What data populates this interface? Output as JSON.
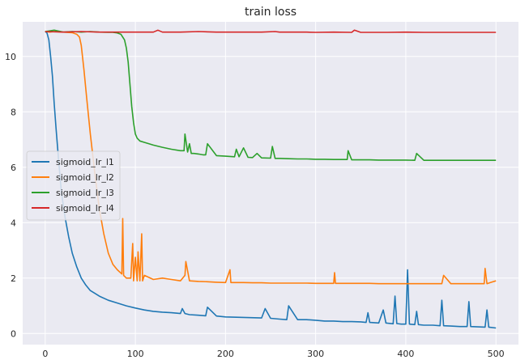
{
  "chart_data": {
    "type": "line",
    "title": "train loss",
    "xlabel": "",
    "ylabel": "",
    "xlim": [
      -25,
      525
    ],
    "ylim": [
      -0.4,
      11.25
    ],
    "xticks": [
      0,
      100,
      200,
      300,
      400,
      500
    ],
    "yticks": [
      0,
      2,
      4,
      6,
      8,
      10
    ],
    "grid": true,
    "legend_position": "center-left",
    "series": [
      {
        "name": "sigmoid_lr_l1",
        "color": "#1f77b4",
        "x": [
          0,
          2,
          4,
          6,
          8,
          10,
          12,
          15,
          18,
          22,
          26,
          30,
          35,
          40,
          45,
          50,
          55,
          60,
          70,
          80,
          90,
          100,
          110,
          120,
          130,
          140,
          150,
          152,
          155,
          160,
          170,
          178,
          180,
          190,
          200,
          220,
          240,
          244,
          250,
          260,
          268,
          270,
          280,
          290,
          300,
          310,
          320,
          330,
          340,
          350,
          356,
          358,
          360,
          370,
          375,
          378,
          380,
          386,
          388,
          390,
          395,
          400,
          402,
          404,
          410,
          412,
          414,
          420,
          430,
          438,
          440,
          442,
          450,
          460,
          468,
          470,
          472,
          480,
          488,
          490,
          492,
          500
        ],
        "y": [
          10.9,
          10.85,
          10.6,
          10.0,
          9.3,
          8.3,
          7.4,
          6.2,
          5.1,
          4.2,
          3.5,
          2.9,
          2.4,
          2.0,
          1.75,
          1.55,
          1.45,
          1.35,
          1.2,
          1.1,
          1.0,
          0.92,
          0.85,
          0.8,
          0.77,
          0.75,
          0.72,
          0.9,
          0.72,
          0.68,
          0.66,
          0.64,
          0.95,
          0.63,
          0.6,
          0.58,
          0.56,
          0.9,
          0.55,
          0.52,
          0.5,
          1.0,
          0.5,
          0.5,
          0.48,
          0.45,
          0.45,
          0.43,
          0.43,
          0.42,
          0.4,
          0.75,
          0.4,
          0.38,
          0.85,
          0.38,
          0.37,
          0.35,
          1.35,
          0.36,
          0.34,
          0.34,
          2.3,
          0.34,
          0.32,
          0.8,
          0.32,
          0.3,
          0.3,
          0.28,
          1.2,
          0.28,
          0.27,
          0.25,
          0.25,
          1.15,
          0.25,
          0.24,
          0.23,
          0.85,
          0.23,
          0.2
        ]
      },
      {
        "name": "sigmoid_lr_l2",
        "color": "#ff7f0e",
        "x": [
          0,
          5,
          10,
          20,
          30,
          35,
          38,
          40,
          43,
          46,
          50,
          55,
          60,
          65,
          70,
          75,
          80,
          85,
          86,
          87,
          90,
          95,
          97,
          98,
          100,
          102,
          103,
          105,
          107,
          108,
          110,
          120,
          130,
          140,
          150,
          155,
          156,
          160,
          170,
          180,
          190,
          200,
          205,
          206,
          210,
          220,
          230,
          240,
          250,
          260,
          270,
          280,
          290,
          300,
          310,
          320,
          321,
          322,
          330,
          340,
          350,
          360,
          370,
          380,
          390,
          400,
          410,
          420,
          440,
          442,
          450,
          460,
          470,
          480,
          487,
          488,
          490,
          495,
          500
        ],
        "y": [
          10.9,
          10.88,
          10.9,
          10.88,
          10.86,
          10.8,
          10.7,
          10.4,
          9.5,
          8.5,
          7.2,
          5.8,
          4.5,
          3.6,
          2.9,
          2.5,
          2.3,
          2.15,
          4.15,
          2.1,
          2.0,
          2.0,
          3.25,
          1.9,
          2.75,
          1.9,
          2.95,
          1.9,
          3.6,
          1.9,
          2.1,
          1.95,
          2.0,
          1.95,
          1.9,
          2.1,
          2.6,
          1.9,
          1.88,
          1.87,
          1.85,
          1.84,
          2.3,
          1.84,
          1.84,
          1.84,
          1.83,
          1.83,
          1.82,
          1.82,
          1.82,
          1.82,
          1.82,
          1.81,
          1.81,
          1.81,
          2.2,
          1.81,
          1.81,
          1.81,
          1.81,
          1.81,
          1.8,
          1.8,
          1.8,
          1.8,
          1.8,
          1.8,
          1.8,
          2.1,
          1.8,
          1.8,
          1.8,
          1.8,
          1.8,
          2.35,
          1.8,
          1.85,
          1.9
        ]
      },
      {
        "name": "sigmoid_lr_l3",
        "color": "#2ca02c",
        "x": [
          0,
          10,
          20,
          30,
          40,
          50,
          60,
          70,
          75,
          80,
          84,
          88,
          90,
          92,
          94,
          96,
          98,
          100,
          102,
          105,
          110,
          120,
          130,
          140,
          150,
          154,
          155,
          158,
          160,
          162,
          165,
          170,
          175,
          178,
          180,
          190,
          200,
          210,
          212,
          215,
          220,
          225,
          230,
          235,
          240,
          250,
          252,
          255,
          260,
          270,
          280,
          290,
          300,
          310,
          320,
          330,
          335,
          336,
          340,
          350,
          360,
          370,
          380,
          390,
          400,
          410,
          412,
          420,
          430,
          440,
          450,
          460,
          470,
          480,
          490,
          500
        ],
        "y": [
          10.9,
          10.95,
          10.88,
          10.9,
          10.88,
          10.9,
          10.88,
          10.87,
          10.87,
          10.85,
          10.8,
          10.6,
          10.3,
          9.8,
          9.0,
          8.2,
          7.6,
          7.2,
          7.05,
          6.95,
          6.9,
          6.8,
          6.72,
          6.65,
          6.6,
          6.6,
          7.2,
          6.55,
          6.85,
          6.5,
          6.5,
          6.48,
          6.45,
          6.45,
          6.85,
          6.42,
          6.4,
          6.38,
          6.65,
          6.38,
          6.7,
          6.36,
          6.35,
          6.5,
          6.34,
          6.33,
          6.75,
          6.32,
          6.32,
          6.31,
          6.3,
          6.3,
          6.29,
          6.29,
          6.28,
          6.28,
          6.28,
          6.6,
          6.27,
          6.27,
          6.27,
          6.26,
          6.26,
          6.26,
          6.26,
          6.25,
          6.5,
          6.25,
          6.25,
          6.25,
          6.25,
          6.25,
          6.25,
          6.25,
          6.25,
          6.25
        ]
      },
      {
        "name": "sigmoid_lr_l4",
        "color": "#d62728",
        "x": [
          0,
          20,
          40,
          60,
          80,
          100,
          120,
          125,
          130,
          150,
          170,
          190,
          210,
          240,
          255,
          260,
          290,
          300,
          320,
          340,
          343,
          350,
          380,
          400,
          420,
          440,
          460,
          480,
          500
        ],
        "y": [
          10.9,
          10.88,
          10.9,
          10.88,
          10.88,
          10.88,
          10.88,
          10.95,
          10.88,
          10.88,
          10.9,
          10.88,
          10.88,
          10.88,
          10.9,
          10.88,
          10.88,
          10.87,
          10.88,
          10.87,
          10.95,
          10.87,
          10.87,
          10.88,
          10.87,
          10.87,
          10.87,
          10.87,
          10.87
        ]
      }
    ]
  }
}
